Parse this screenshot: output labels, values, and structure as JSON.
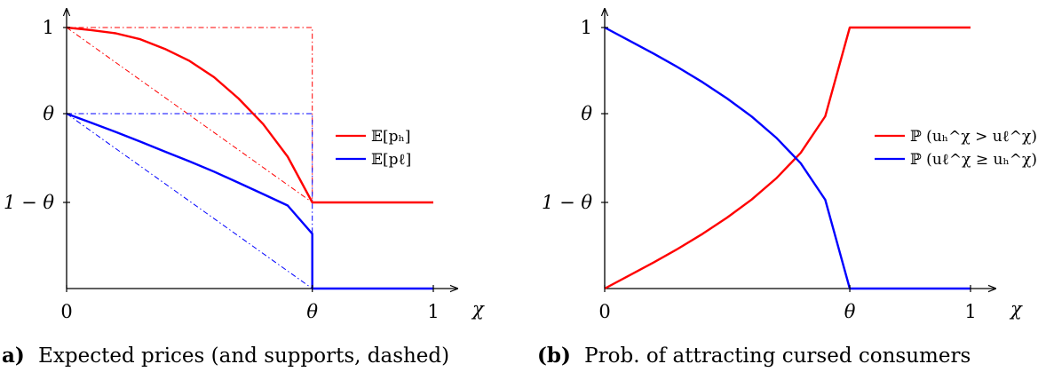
{
  "chart_data": [
    {
      "type": "line",
      "panel_label": "a)",
      "caption": "Expected prices (and supports, dashed)",
      "xlabel": "χ",
      "ylabel": "",
      "xlim": [
        0,
        1
      ],
      "ylim": [
        0,
        1
      ],
      "theta": 0.67,
      "x_ticks": [
        {
          "value": 0,
          "label": "0"
        },
        {
          "value": 0.67,
          "label": "θ"
        },
        {
          "value": 1,
          "label": "1"
        }
      ],
      "y_ticks": [
        {
          "value": 1,
          "label": "1"
        },
        {
          "value": 0.67,
          "label": "θ"
        },
        {
          "value": 0.33,
          "label": "1 − θ"
        }
      ],
      "legend_position": "right",
      "series": [
        {
          "name": "𝔼[pₕ]",
          "color": "#ff0000",
          "points": [
            [
              0,
              1
            ],
            [
              0.067,
              0.99
            ],
            [
              0.134,
              0.978
            ],
            [
              0.201,
              0.955
            ],
            [
              0.268,
              0.918
            ],
            [
              0.335,
              0.872
            ],
            [
              0.402,
              0.81
            ],
            [
              0.469,
              0.728
            ],
            [
              0.536,
              0.63
            ],
            [
              0.603,
              0.505
            ],
            [
              0.67,
              0.33
            ],
            [
              1,
              0.33
            ]
          ]
        },
        {
          "name": "𝔼[pℓ]",
          "color": "#0000ff",
          "points": [
            [
              0,
              0.67
            ],
            [
              0.067,
              0.635
            ],
            [
              0.134,
              0.6
            ],
            [
              0.201,
              0.563
            ],
            [
              0.268,
              0.525
            ],
            [
              0.335,
              0.487
            ],
            [
              0.402,
              0.448
            ],
            [
              0.469,
              0.405
            ],
            [
              0.536,
              0.362
            ],
            [
              0.603,
              0.318
            ],
            [
              0.67,
              0.21
            ],
            [
              0.67,
              0
            ],
            [
              1,
              0
            ]
          ]
        }
      ],
      "supports": [
        {
          "color": "#ff0000",
          "points": [
            [
              0,
              1
            ],
            [
              0.67,
              1
            ],
            [
              0.67,
              0.33
            ]
          ]
        },
        {
          "color": "#ff0000",
          "points": [
            [
              0,
              1
            ],
            [
              0.67,
              0.33
            ]
          ]
        },
        {
          "color": "#0000ff",
          "points": [
            [
              0,
              0.67
            ],
            [
              0.67,
              0.67
            ],
            [
              0.67,
              0
            ]
          ]
        },
        {
          "color": "#0000ff",
          "points": [
            [
              0,
              0.67
            ],
            [
              0.67,
              0
            ]
          ]
        }
      ]
    },
    {
      "type": "line",
      "panel_label": "(b)",
      "caption": "Prob. of attracting cursed consumers",
      "xlabel": "χ",
      "ylabel": "",
      "xlim": [
        0,
        1
      ],
      "ylim": [
        0,
        1
      ],
      "theta": 0.67,
      "x_ticks": [
        {
          "value": 0,
          "label": "0"
        },
        {
          "value": 0.67,
          "label": "θ"
        },
        {
          "value": 1,
          "label": "1"
        }
      ],
      "y_ticks": [
        {
          "value": 1,
          "label": "1"
        },
        {
          "value": 0.67,
          "label": "θ"
        },
        {
          "value": 0.33,
          "label": "1 − θ"
        }
      ],
      "legend_position": "right",
      "series": [
        {
          "name": "ℙ (uₕ^χ > uℓ^χ)",
          "color": "#ff0000",
          "points": [
            [
              0,
              0
            ],
            [
              0.067,
              0.05
            ],
            [
              0.134,
              0.1
            ],
            [
              0.201,
              0.153
            ],
            [
              0.268,
              0.21
            ],
            [
              0.335,
              0.272
            ],
            [
              0.402,
              0.341
            ],
            [
              0.469,
              0.422
            ],
            [
              0.536,
              0.52
            ],
            [
              0.603,
              0.66
            ],
            [
              0.67,
              1
            ],
            [
              1,
              1
            ]
          ]
        },
        {
          "name": "ℙ (uℓ^χ ≥ uₕ^χ)",
          "color": "#0000ff",
          "points": [
            [
              0,
              1
            ],
            [
              0.067,
              0.95
            ],
            [
              0.134,
              0.9
            ],
            [
              0.201,
              0.847
            ],
            [
              0.268,
              0.79
            ],
            [
              0.335,
              0.728
            ],
            [
              0.402,
              0.659
            ],
            [
              0.469,
              0.578
            ],
            [
              0.536,
              0.48
            ],
            [
              0.603,
              0.34
            ],
            [
              0.67,
              0
            ],
            [
              1,
              0
            ]
          ]
        }
      ]
    }
  ],
  "legend_labels": [
    [
      "𝔼[pₕ]",
      "𝔼[pℓ]"
    ],
    [
      "ℙ (uₕ^χ > uℓ^χ)",
      "ℙ (uℓ^χ ≥ uₕ^χ)"
    ]
  ]
}
